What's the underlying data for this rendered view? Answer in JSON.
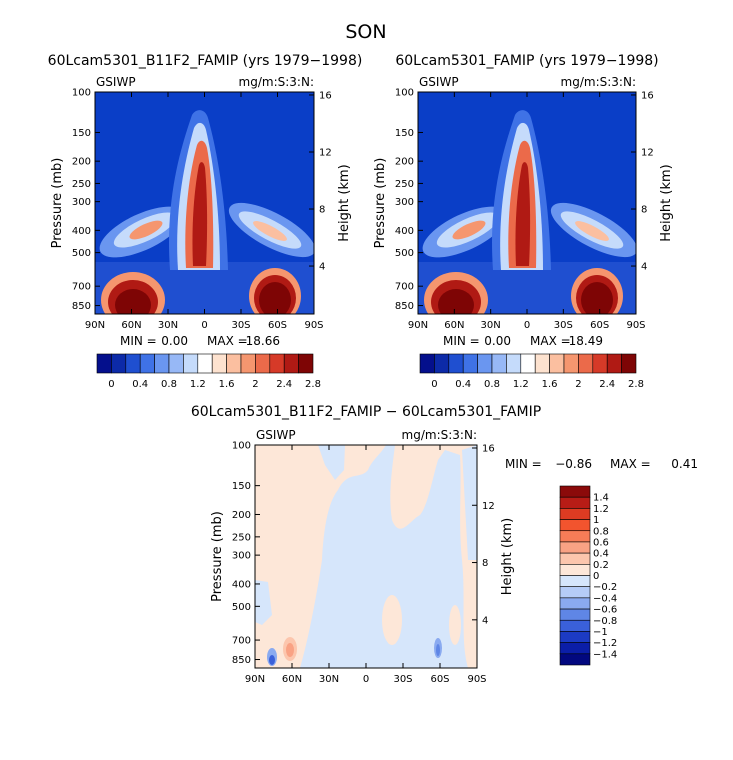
{
  "page": {
    "season": "SON"
  },
  "chart_data": [
    {
      "type": "heatmap",
      "title": "60Lcam5301_B11F2_FAMIP (yrs 1979−1998)",
      "left_label": "GSIWP",
      "right_label": "mg/m:S:3:N:",
      "ylabel": "Pressure (mb)",
      "ylabel_right": "Height (km)",
      "x_ticks": [
        "90N",
        "60N",
        "30N",
        "0",
        "30S",
        "60S",
        "90S"
      ],
      "y_ticks": [
        "100",
        "150",
        "200",
        "250",
        "300",
        "400",
        "500",
        "700",
        "850"
      ],
      "y_ticks_right": [
        "16",
        "12",
        "8",
        "4"
      ],
      "stats": {
        "min_label": "MIN =",
        "min": "0.00",
        "max_label": "MAX =",
        "max": "18.66"
      },
      "colorbar": {
        "orientation": "horizontal",
        "labels": [
          "0",
          "0.4",
          "0.8",
          "1.2",
          "1.6",
          "2",
          "2.4",
          "2.8"
        ],
        "colors": [
          "#040f8c",
          "#0c2aa8",
          "#1f4fd0",
          "#3f72e6",
          "#6a96f0",
          "#97b8f6",
          "#c5dbfb",
          "#ffffff",
          "#fde2cf",
          "#fbbfa0",
          "#f5966f",
          "#eb6a4a",
          "#d63a28",
          "#b01a14",
          "#7e0505"
        ]
      }
    },
    {
      "type": "heatmap",
      "title": "60Lcam5301_FAMIP (yrs 1979−1998)",
      "left_label": "GSIWP",
      "right_label": "mg/m:S:3:N:",
      "ylabel": "Pressure (mb)",
      "ylabel_right": "Height (km)",
      "x_ticks": [
        "90N",
        "60N",
        "30N",
        "0",
        "30S",
        "60S",
        "90S"
      ],
      "y_ticks": [
        "100",
        "150",
        "200",
        "250",
        "300",
        "400",
        "500",
        "700",
        "850"
      ],
      "y_ticks_right": [
        "16",
        "12",
        "8",
        "4"
      ],
      "stats": {
        "min_label": "MIN =",
        "min": "0.00",
        "max_label": "MAX =",
        "max": "18.49"
      },
      "colorbar": {
        "orientation": "horizontal",
        "labels": [
          "0",
          "0.4",
          "0.8",
          "1.2",
          "1.6",
          "2",
          "2.4",
          "2.8"
        ],
        "colors": [
          "#040f8c",
          "#0c2aa8",
          "#1f4fd0",
          "#3f72e6",
          "#6a96f0",
          "#97b8f6",
          "#c5dbfb",
          "#ffffff",
          "#fde2cf",
          "#fbbfa0",
          "#f5966f",
          "#eb6a4a",
          "#d63a28",
          "#b01a14",
          "#7e0505"
        ]
      }
    },
    {
      "type": "heatmap",
      "title": "60Lcam5301_B11F2_FAMIP − 60Lcam5301_FAMIP",
      "left_label": "GSIWP",
      "right_label": "mg/m:S:3:N:",
      "ylabel": "Pressure (mb)",
      "ylabel_right": "Height (km)",
      "x_ticks": [
        "90N",
        "60N",
        "30N",
        "0",
        "30S",
        "60S",
        "90S"
      ],
      "y_ticks": [
        "100",
        "150",
        "200",
        "250",
        "300",
        "400",
        "500",
        "700",
        "850"
      ],
      "y_ticks_right": [
        "16",
        "12",
        "8",
        "4"
      ],
      "stats": {
        "min_label": "MIN =",
        "min": "−0.86",
        "max_label": "MAX =",
        "max": "0.41"
      },
      "colorbar": {
        "orientation": "vertical",
        "labels": [
          "1.4",
          "1.2",
          "1",
          "0.8",
          "0.6",
          "0.4",
          "0.2",
          "0",
          "−0.2",
          "−0.4",
          "−0.6",
          "−0.8",
          "−1",
          "−1.2",
          "−1.4"
        ],
        "colors": [
          "#8b0a0a",
          "#b71c16",
          "#dd3b22",
          "#f2542e",
          "#f77c57",
          "#f9a284",
          "#fcc6ad",
          "#fde7d8",
          "#d6e6fb",
          "#b5ccf7",
          "#8aaaf0",
          "#5f86e6",
          "#3a60da",
          "#1c3bc4",
          "#0b1ea8",
          "#02087f"
        ]
      }
    }
  ]
}
